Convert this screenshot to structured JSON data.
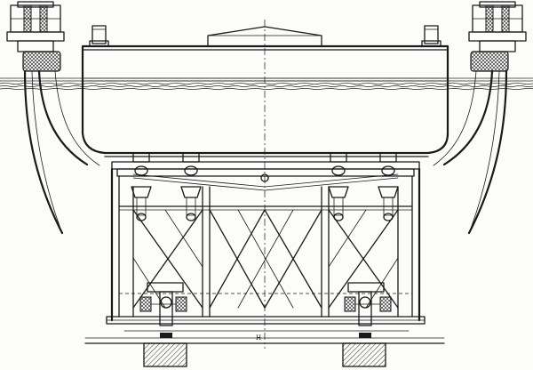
{
  "drawing": {
    "label_mark": "H",
    "ink_color": "#1a1a1a",
    "paper_color": "#fcfcfa"
  },
  "components": [
    "pontoon-hull",
    "water-surface",
    "flexible-hose-left",
    "flexible-hose-right",
    "pump-unit-left",
    "pump-unit-right",
    "cradle-frame",
    "cross-bracing",
    "suspension-lamps",
    "wheel-carriage-left",
    "wheel-carriage-right",
    "foundation-blocks",
    "ground-line"
  ]
}
